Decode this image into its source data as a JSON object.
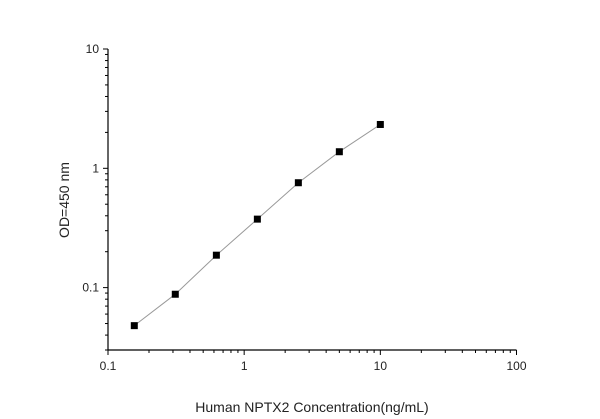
{
  "chart_data": {
    "type": "line",
    "title": "",
    "xlabel": "Human NPTX2 Concentration(ng/mL)",
    "ylabel": "OD=450 nm",
    "x_scale": "log",
    "y_scale": "log",
    "xlim": [
      0.1,
      100
    ],
    "ylim": [
      0.03,
      10
    ],
    "x_ticks": [
      "0.1",
      "1",
      "10",
      "100"
    ],
    "y_ticks": [
      "0.1",
      "1",
      "10"
    ],
    "grid": false,
    "marker": "square",
    "colors": {
      "line": "#999999",
      "marker": "#000000",
      "axis": "#000000"
    },
    "series": [
      {
        "x": [
          0.156,
          0.312,
          0.625,
          1.25,
          2.5,
          5,
          10
        ],
        "y": [
          0.048,
          0.088,
          0.187,
          0.375,
          0.757,
          1.377,
          2.33
        ]
      }
    ]
  }
}
